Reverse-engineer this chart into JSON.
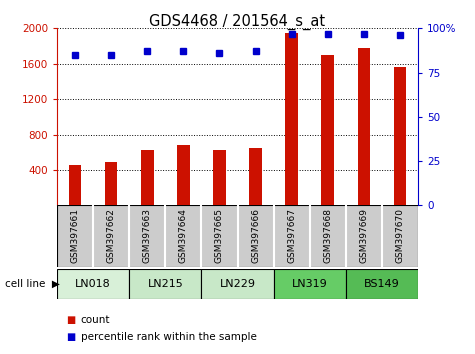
{
  "title": "GDS4468 / 201564_s_at",
  "samples": [
    "GSM397661",
    "GSM397662",
    "GSM397663",
    "GSM397664",
    "GSM397665",
    "GSM397666",
    "GSM397667",
    "GSM397668",
    "GSM397669",
    "GSM397670"
  ],
  "counts": [
    460,
    490,
    620,
    680,
    620,
    650,
    1950,
    1700,
    1780,
    1560
  ],
  "percentile_ranks": [
    85,
    85,
    87,
    87,
    86,
    87,
    97,
    97,
    97,
    96
  ],
  "cell_lines": [
    {
      "label": "LN018",
      "start": 0,
      "end": 2
    },
    {
      "label": "LN215",
      "start": 2,
      "end": 4
    },
    {
      "label": "LN229",
      "start": 4,
      "end": 6
    },
    {
      "label": "LN319",
      "start": 6,
      "end": 8
    },
    {
      "label": "BS149",
      "start": 8,
      "end": 10
    }
  ],
  "cell_colors": [
    "#d8f0d8",
    "#d8f0d8",
    "#d8f0d8",
    "#66cc66",
    "#66cc66"
  ],
  "ylim_left": [
    0,
    2000
  ],
  "ylim_right": [
    0,
    100
  ],
  "yticks_left": [
    400,
    800,
    1200,
    1600,
    2000
  ],
  "yticks_right": [
    0,
    25,
    50,
    75,
    100
  ],
  "bar_color": "#cc1100",
  "dot_color": "#0000cc",
  "background_color": "#ffffff",
  "sample_box_color": "#cccccc",
  "sample_box_edge": "#ffffff"
}
